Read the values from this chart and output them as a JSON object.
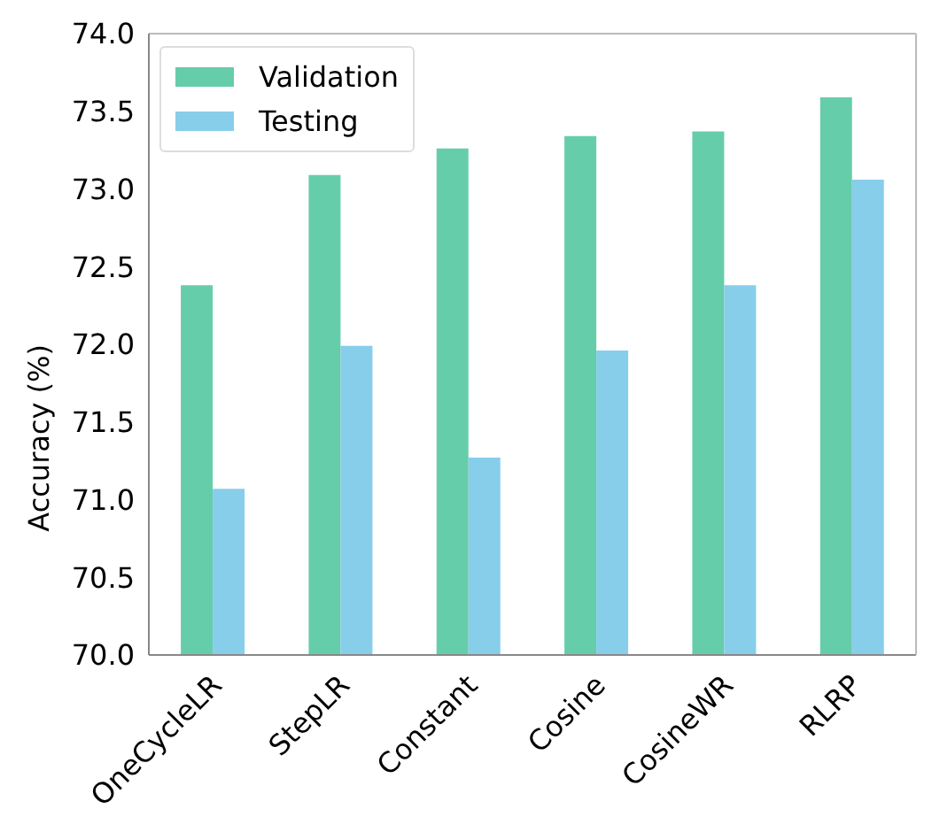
{
  "chart_data": {
    "type": "bar",
    "ylabel": "Accuracy (%)",
    "categories": [
      "OneCycleLR",
      "StepLR",
      "Constant",
      "Cosine",
      "CosineWR",
      "RLRP"
    ],
    "series": [
      {
        "name": "Validation",
        "color": "#66cdaa",
        "values": [
          72.38,
          73.09,
          73.26,
          73.34,
          73.37,
          73.59
        ]
      },
      {
        "name": "Testing",
        "color": "#87ceeb",
        "values": [
          71.07,
          71.99,
          71.27,
          71.96,
          72.38,
          73.06
        ]
      }
    ],
    "ylim": [
      70,
      74
    ],
    "yticks": [
      {
        "value": 70,
        "label": "70.0"
      },
      70.5,
      {
        "value": 71,
        "label": "71.0"
      },
      71.5,
      {
        "value": 72,
        "label": "72.0"
      },
      72.5,
      {
        "value": 73,
        "label": "73.0"
      },
      73.5,
      {
        "value": 74,
        "label": "74.0"
      }
    ],
    "legend": "top left",
    "grid": false
  }
}
